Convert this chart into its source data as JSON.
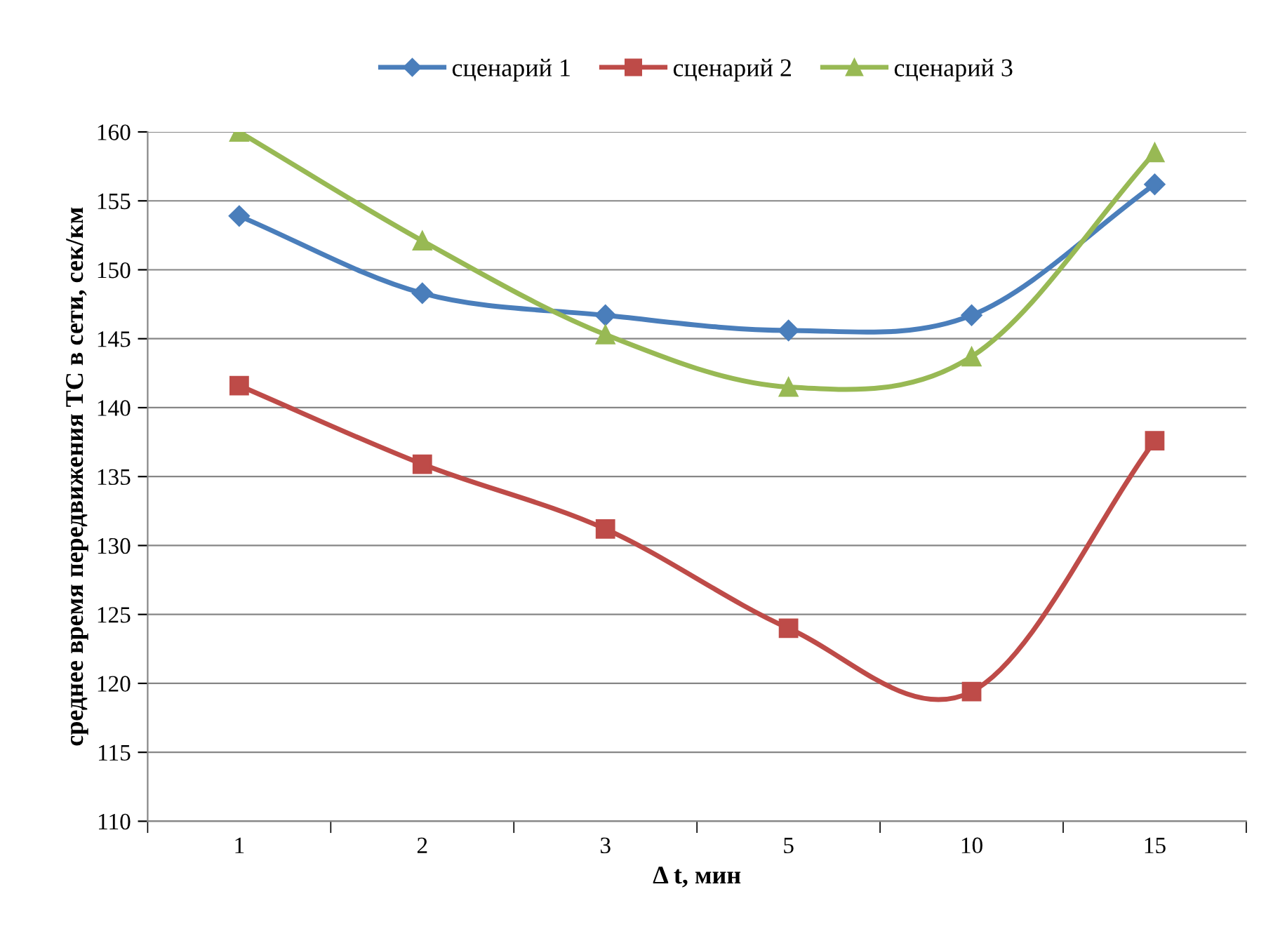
{
  "chart_data": {
    "type": "line",
    "xlabel": "Δ t, мин",
    "ylabel": "среднее время передвижения ТС в сети, сек/км",
    "categories": [
      "1",
      "2",
      "3",
      "5",
      "10",
      "15"
    ],
    "series": [
      {
        "name": "сценарий 1",
        "color": "#4a7ebb",
        "marker": "diamond",
        "values": [
          153.9,
          148.3,
          146.7,
          145.6,
          146.7,
          156.2
        ]
      },
      {
        "name": "сценарий 2",
        "color": "#be4b48",
        "marker": "square",
        "values": [
          141.6,
          135.9,
          131.2,
          124.0,
          119.4,
          137.6
        ]
      },
      {
        "name": "сценарий 3",
        "color": "#98b954",
        "marker": "triangle",
        "values": [
          160.0,
          152.1,
          145.3,
          141.5,
          143.7,
          158.5
        ]
      }
    ],
    "ylim": [
      110,
      160
    ],
    "yticks": [
      110,
      115,
      120,
      125,
      130,
      135,
      140,
      145,
      150,
      155,
      160
    ],
    "grid": "y",
    "legend": "top",
    "line_style": "solid"
  }
}
